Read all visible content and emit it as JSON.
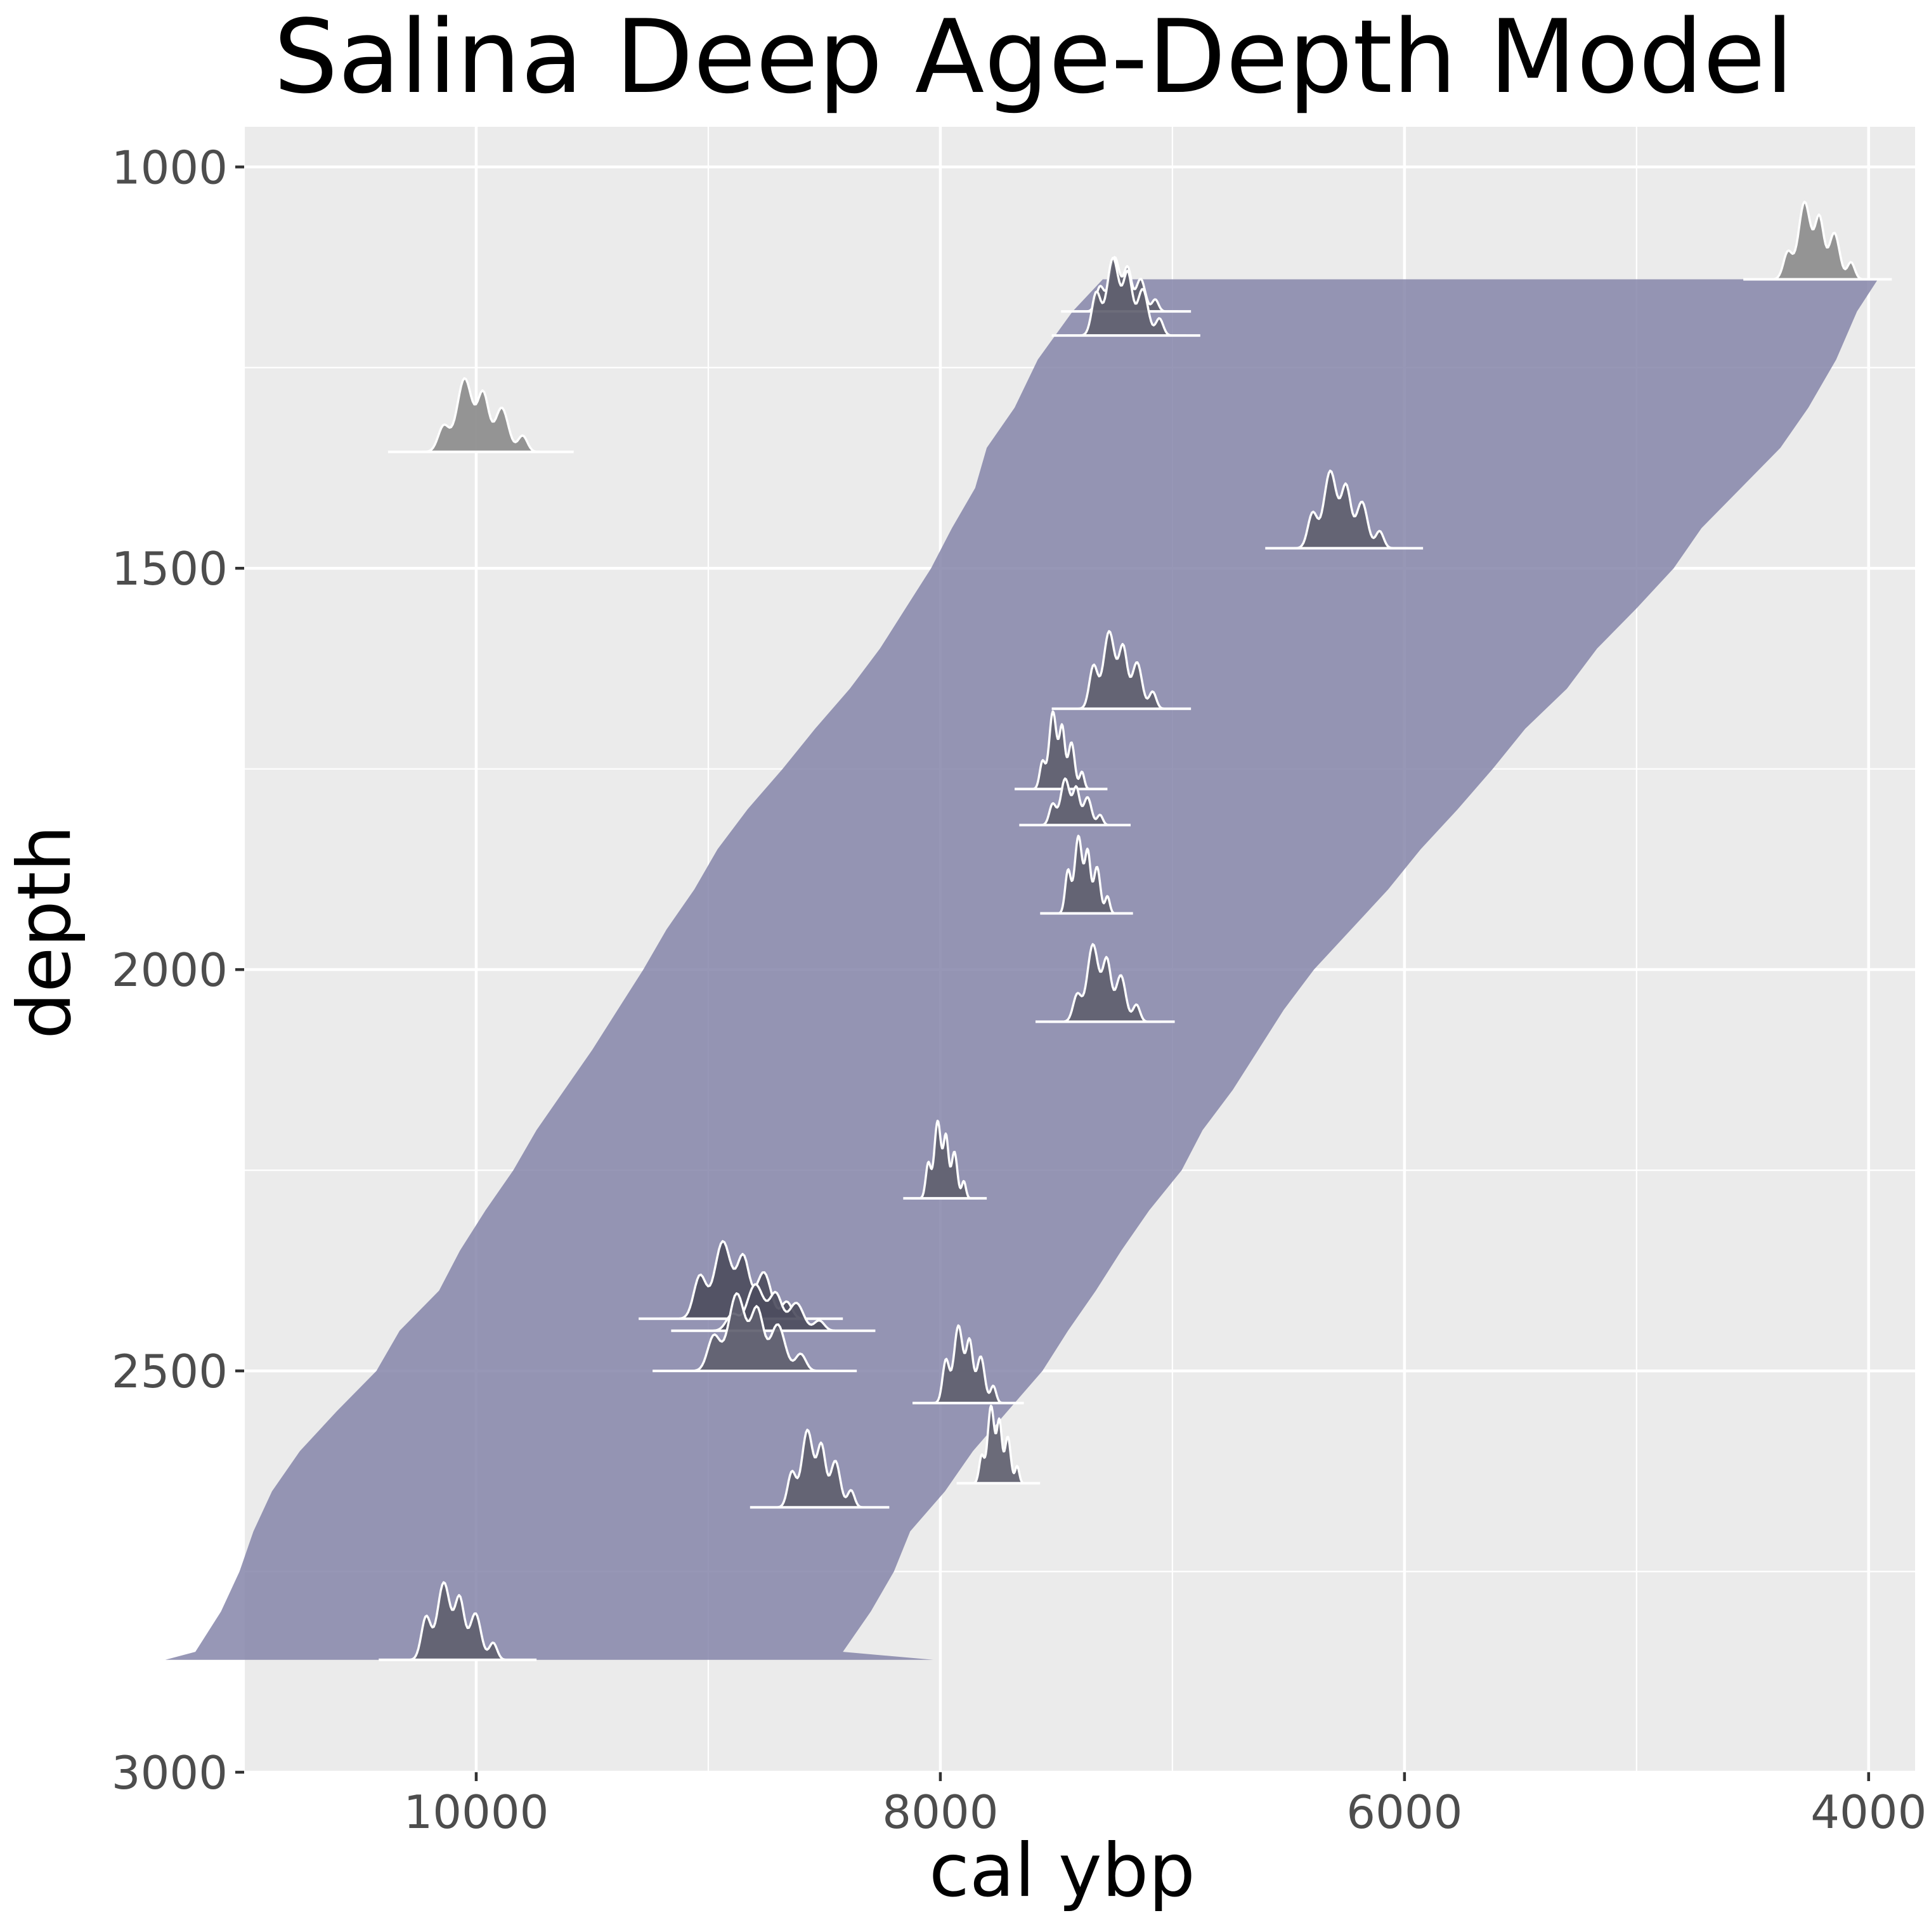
{
  "chart_data": {
    "type": "area",
    "title": "Salina Deep Age-Depth Model",
    "xlabel": "cal ybp",
    "ylabel": "depth",
    "x_reversed": true,
    "y_reversed": true,
    "xlim": [
      11000,
      3800
    ],
    "ylim": [
      3000,
      950
    ],
    "x_ticks": [
      "10000",
      "8000",
      "6000",
      "4000"
    ],
    "x_tick_values": [
      10000,
      8000,
      6000,
      4000
    ],
    "y_ticks": [
      "1000",
      "1500",
      "2000",
      "2500",
      "3000"
    ],
    "y_tick_values": [
      1000,
      1500,
      2000,
      2500,
      3000
    ],
    "grid": true,
    "background": "#ebebeb",
    "band_color": "#8080a6",
    "envelope": {
      "depth": [
        1140,
        1180,
        1240,
        1300,
        1350,
        1400,
        1450,
        1500,
        1550,
        1600,
        1650,
        1700,
        1750,
        1800,
        1850,
        1900,
        1950,
        2000,
        2050,
        2100,
        2150,
        2200,
        2250,
        2300,
        2350,
        2400,
        2450,
        2500,
        2550,
        2600,
        2650,
        2700,
        2750,
        2800,
        2850,
        2860
      ],
      "old_bound": [
        7300,
        7430,
        7580,
        7680,
        7800,
        7850,
        7950,
        8040,
        8150,
        8260,
        8390,
        8540,
        8680,
        8830,
        8960,
        9060,
        9180,
        9280,
        9390,
        9500,
        9620,
        9740,
        9840,
        9960,
        10070,
        10160,
        10330,
        10430,
        10600,
        10760,
        10880,
        10960,
        11020,
        11100,
        11210,
        11340
      ],
      "young_bound": [
        3960,
        4050,
        4140,
        4260,
        4380,
        4550,
        4720,
        4840,
        5000,
        5170,
        5300,
        5480,
        5620,
        5770,
        5930,
        6070,
        6230,
        6390,
        6520,
        6630,
        6740,
        6870,
        6960,
        7100,
        7220,
        7330,
        7450,
        7560,
        7710,
        7860,
        7980,
        8130,
        8200,
        8300,
        8420,
        8030
      ]
    },
    "date_distributions": [
      {
        "depth": 1140,
        "peak_age": 4220,
        "spread": 160,
        "peak_height": 100,
        "fill": "#8c8c8c"
      },
      {
        "depth": 1180,
        "peak_age": 7200,
        "spread": 140,
        "peak_height": 70,
        "fill": "#5f5f6f"
      },
      {
        "depth": 1210,
        "peak_age": 7200,
        "spread": 160,
        "peak_height": 100,
        "fill": "#5f5f6f"
      },
      {
        "depth": 1355,
        "peak_age": 9980,
        "spread": 200,
        "peak_height": 95,
        "fill": "#8c8c8c"
      },
      {
        "depth": 1475,
        "peak_age": 6260,
        "spread": 170,
        "peak_height": 100,
        "fill": "#5f5f6f"
      },
      {
        "depth": 1675,
        "peak_age": 7220,
        "spread": 150,
        "peak_height": 100,
        "fill": "#5f5f6f"
      },
      {
        "depth": 1775,
        "peak_age": 7480,
        "spread": 100,
        "peak_height": 100,
        "fill": "#5f5f6f"
      },
      {
        "depth": 1820,
        "peak_age": 7420,
        "spread": 120,
        "peak_height": 60,
        "fill": "#5f5f6f"
      },
      {
        "depth": 1930,
        "peak_age": 7370,
        "spread": 100,
        "peak_height": 100,
        "fill": "#5f5f6f"
      },
      {
        "depth": 2065,
        "peak_age": 7290,
        "spread": 150,
        "peak_height": 100,
        "fill": "#5f5f6f"
      },
      {
        "depth": 2285,
        "peak_age": 7980,
        "spread": 90,
        "peak_height": 100,
        "fill": "#5f5f6f"
      },
      {
        "depth": 2435,
        "peak_age": 8860,
        "spread": 220,
        "peak_height": 100,
        "fill": "#4d4d5e"
      },
      {
        "depth": 2450,
        "peak_age": 8720,
        "spread": 220,
        "peak_height": 60,
        "fill": "#4d4d5e"
      },
      {
        "depth": 2500,
        "peak_age": 8800,
        "spread": 220,
        "peak_height": 100,
        "fill": "#5f5f6f"
      },
      {
        "depth": 2540,
        "peak_age": 7880,
        "spread": 120,
        "peak_height": 100,
        "fill": "#5f5f6f"
      },
      {
        "depth": 2640,
        "peak_age": 7750,
        "spread": 90,
        "peak_height": 100,
        "fill": "#5f5f6f"
      },
      {
        "depth": 2670,
        "peak_age": 8520,
        "spread": 150,
        "peak_height": 100,
        "fill": "#5f5f6f"
      },
      {
        "depth": 2860,
        "peak_age": 10080,
        "spread": 170,
        "peak_height": 100,
        "fill": "#5f5f6f"
      }
    ]
  }
}
